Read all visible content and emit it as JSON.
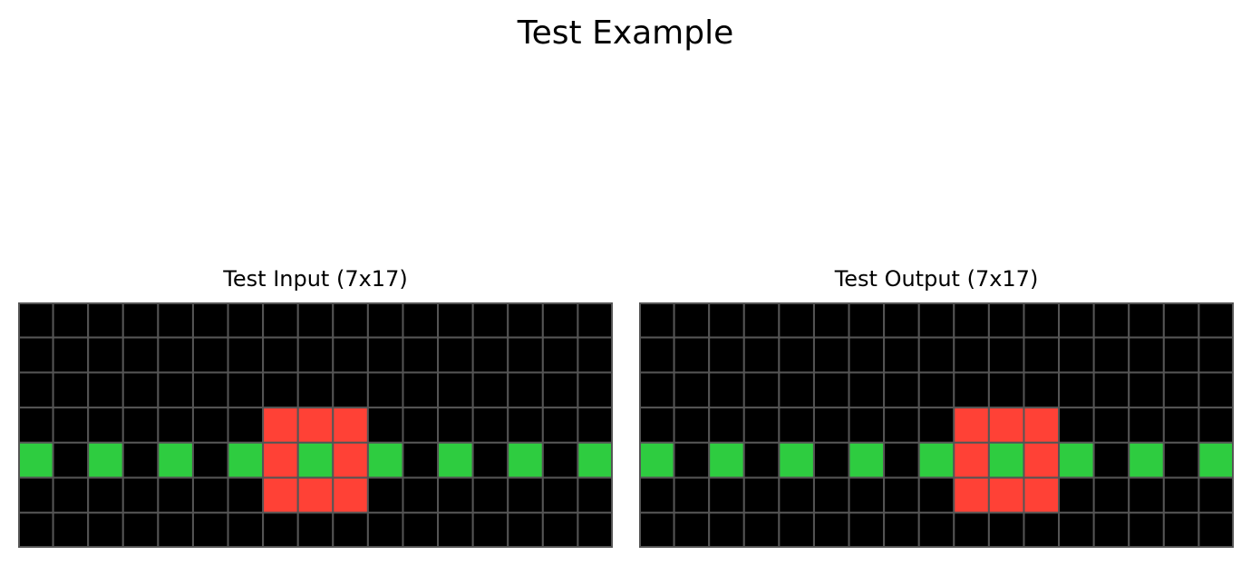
{
  "title": "Test Example",
  "palette": {
    "0": "#000000",
    "2": "#ff4136",
    "3": "#2ecc40"
  },
  "grid_line_color": "#555555",
  "panels": [
    {
      "title": "Test Input (7x17)",
      "rows": 7,
      "cols": 17,
      "grid": [
        [
          0,
          0,
          0,
          0,
          0,
          0,
          0,
          0,
          0,
          0,
          0,
          0,
          0,
          0,
          0,
          0,
          0
        ],
        [
          0,
          0,
          0,
          0,
          0,
          0,
          0,
          0,
          0,
          0,
          0,
          0,
          0,
          0,
          0,
          0,
          0
        ],
        [
          0,
          0,
          0,
          0,
          0,
          0,
          0,
          0,
          0,
          0,
          0,
          0,
          0,
          0,
          0,
          0,
          0
        ],
        [
          0,
          0,
          0,
          0,
          0,
          0,
          0,
          2,
          2,
          2,
          0,
          0,
          0,
          0,
          0,
          0,
          0
        ],
        [
          3,
          0,
          3,
          0,
          3,
          0,
          3,
          2,
          3,
          2,
          3,
          0,
          3,
          0,
          3,
          0,
          3
        ],
        [
          0,
          0,
          0,
          0,
          0,
          0,
          0,
          2,
          2,
          2,
          0,
          0,
          0,
          0,
          0,
          0,
          0
        ],
        [
          0,
          0,
          0,
          0,
          0,
          0,
          0,
          0,
          0,
          0,
          0,
          0,
          0,
          0,
          0,
          0,
          0
        ]
      ]
    },
    {
      "title": "Test Output (7x17)",
      "rows": 7,
      "cols": 17,
      "grid": [
        [
          0,
          0,
          0,
          0,
          0,
          0,
          0,
          0,
          0,
          0,
          0,
          0,
          0,
          0,
          0,
          0,
          0
        ],
        [
          0,
          0,
          0,
          0,
          0,
          0,
          0,
          0,
          0,
          0,
          0,
          0,
          0,
          0,
          0,
          0,
          0
        ],
        [
          0,
          0,
          0,
          0,
          0,
          0,
          0,
          0,
          0,
          0,
          0,
          0,
          0,
          0,
          0,
          0,
          0
        ],
        [
          0,
          0,
          0,
          0,
          0,
          0,
          0,
          0,
          0,
          2,
          2,
          2,
          0,
          0,
          0,
          0,
          0
        ],
        [
          3,
          0,
          3,
          0,
          3,
          0,
          3,
          0,
          3,
          2,
          3,
          2,
          3,
          0,
          3,
          0,
          3
        ],
        [
          0,
          0,
          0,
          0,
          0,
          0,
          0,
          0,
          0,
          2,
          2,
          2,
          0,
          0,
          0,
          0,
          0
        ],
        [
          0,
          0,
          0,
          0,
          0,
          0,
          0,
          0,
          0,
          0,
          0,
          0,
          0,
          0,
          0,
          0,
          0
        ]
      ]
    }
  ]
}
